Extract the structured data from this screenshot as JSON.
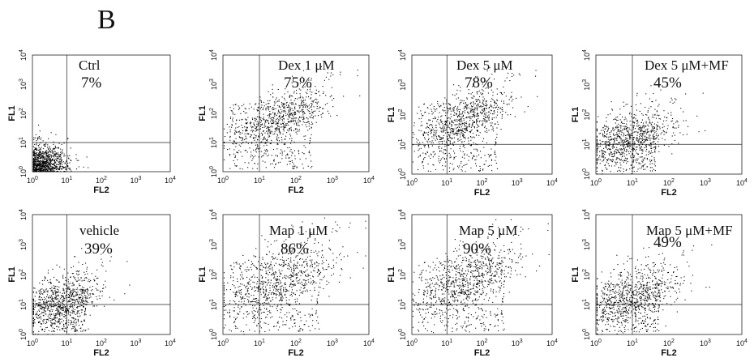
{
  "panel_letter": "B",
  "axis": {
    "x_title": "FL2",
    "y_title": "FL1",
    "tick_base": "10",
    "tick_exponents": [
      "0",
      "1",
      "2",
      "3",
      "4"
    ]
  },
  "chart_data": [
    {
      "type": "scatter",
      "title": "Ctrl",
      "annotation": "7%",
      "percent_upper_right": 7,
      "xlim": [
        1,
        10000
      ],
      "ylim": [
        1,
        10000
      ],
      "log_scale": true,
      "gate": {
        "x": 10,
        "y": 10
      },
      "xlabel": "FL2",
      "ylabel": "FL1"
    },
    {
      "type": "scatter",
      "title": "Dex 1 μM",
      "annotation": "75%",
      "percent_upper_right": 75,
      "xlim": [
        1,
        10000
      ],
      "ylim": [
        1,
        10000
      ],
      "log_scale": true,
      "gate": {
        "x": 10,
        "y": 10
      },
      "xlabel": "FL2",
      "ylabel": "FL1"
    },
    {
      "type": "scatter",
      "title": "Dex 5 μM",
      "annotation": "78%",
      "percent_upper_right": 78,
      "xlim": [
        1,
        10000
      ],
      "ylim": [
        1,
        10000
      ],
      "log_scale": true,
      "gate": {
        "x": 10,
        "y": 10
      },
      "xlabel": "FL2",
      "ylabel": "FL1"
    },
    {
      "type": "scatter",
      "title": "Dex 5 μM+MF",
      "annotation": "45%",
      "percent_upper_right": 45,
      "xlim": [
        1,
        10000
      ],
      "ylim": [
        1,
        10000
      ],
      "log_scale": true,
      "gate": {
        "x": 10,
        "y": 10
      },
      "xlabel": "FL2",
      "ylabel": "FL1"
    },
    {
      "type": "scatter",
      "title": "vehicle",
      "annotation": "39%",
      "percent_upper_right": 39,
      "xlim": [
        1,
        10000
      ],
      "ylim": [
        1,
        10000
      ],
      "log_scale": true,
      "gate": {
        "x": 10,
        "y": 10
      },
      "xlabel": "FL2",
      "ylabel": "FL1"
    },
    {
      "type": "scatter",
      "title": "Map 1 μM",
      "annotation": "86%",
      "percent_upper_right": 86,
      "xlim": [
        1,
        10000
      ],
      "ylim": [
        1,
        10000
      ],
      "log_scale": true,
      "gate": {
        "x": 10,
        "y": 10
      },
      "xlabel": "FL2",
      "ylabel": "FL1"
    },
    {
      "type": "scatter",
      "title": "Map 5 μM",
      "annotation": "90%",
      "percent_upper_right": 90,
      "xlim": [
        1,
        10000
      ],
      "ylim": [
        1,
        10000
      ],
      "log_scale": true,
      "gate": {
        "x": 10,
        "y": 10
      },
      "xlabel": "FL2",
      "ylabel": "FL1"
    },
    {
      "type": "scatter",
      "title": "Map 5 μM+MF",
      "annotation": "49%",
      "percent_upper_right": 49,
      "xlim": [
        1,
        10000
      ],
      "ylim": [
        1,
        10000
      ],
      "log_scale": true,
      "gate": {
        "x": 10,
        "y": 10
      },
      "xlabel": "FL2",
      "ylabel": "FL1"
    }
  ]
}
